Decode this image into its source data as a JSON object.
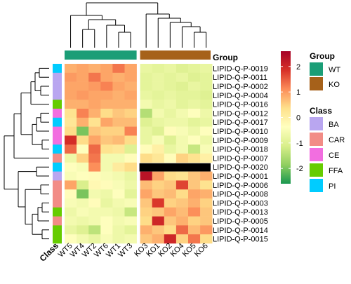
{
  "chart_data": {
    "type": "heatmap",
    "title": "",
    "columns": [
      "WT5",
      "WT4",
      "WT2",
      "WT6",
      "WT1",
      "WT3",
      "KO3",
      "KO1",
      "KO2",
      "KO4",
      "KO5",
      "KO6"
    ],
    "rows": [
      "LIPID-Q-P-0019",
      "LIPID-Q-P-0011",
      "LIPID-Q-P-0002",
      "LIPID-Q-P-0004",
      "LIPID-Q-P-0016",
      "LIPID-Q-P-0012",
      "LIPID-Q-P-0017",
      "LIPID-Q-P-0010",
      "LIPID-Q-P-0009",
      "LIPID-Q-P-0018",
      "LIPID-Q-P-0007",
      "LIPID-Q-P-0020",
      "LIPID-Q-P-0001",
      "LIPID-Q-P-0006",
      "LIPID-Q-P-0008",
      "LIPID-Q-P-0003",
      "LIPID-Q-P-0013",
      "LIPID-Q-P-0005",
      "LIPID-Q-P-0014",
      "LIPID-Q-P-0015"
    ],
    "values": [
      [
        0.8,
        0.9,
        0.8,
        0.9,
        1.3,
        0.9,
        -0.8,
        -0.9,
        -0.8,
        -1.0,
        -0.9,
        -0.8
      ],
      [
        1.0,
        0.9,
        1.3,
        0.9,
        0.8,
        0.9,
        -0.9,
        -0.8,
        -0.9,
        -0.8,
        -1.0,
        -0.9
      ],
      [
        0.9,
        0.9,
        1.0,
        1.2,
        0.9,
        0.8,
        -0.9,
        -0.8,
        -0.9,
        -1.0,
        -0.8,
        -0.9
      ],
      [
        0.9,
        1.0,
        0.9,
        0.9,
        0.8,
        0.9,
        -0.8,
        -0.9,
        -0.8,
        -0.9,
        -0.9,
        -1.0
      ],
      [
        0.8,
        0.8,
        0.9,
        0.8,
        0.8,
        0.8,
        -0.6,
        -0.8,
        -0.7,
        -0.9,
        -0.8,
        -0.9
      ],
      [
        0.3,
        1.2,
        0.8,
        0.4,
        0.6,
        0.5,
        -1.5,
        -0.6,
        -0.8,
        -0.6,
        -0.4,
        -0.7
      ],
      [
        0.2,
        0.8,
        0.3,
        0.9,
        0.7,
        0.7,
        -1.0,
        -0.8,
        -0.7,
        -0.7,
        -0.9,
        -0.8
      ],
      [
        0.4,
        -2.0,
        0.6,
        0.5,
        0.5,
        1.2,
        -0.8,
        -1.0,
        -0.3,
        -0.5,
        -0.7,
        -0.4
      ],
      [
        1.9,
        0.4,
        0.9,
        0.6,
        0.7,
        0.4,
        -0.8,
        -0.5,
        -1.0,
        -0.6,
        -0.4,
        -0.7
      ],
      [
        1.4,
        -0.4,
        1.4,
        0.3,
        0.2,
        -1.0,
        -0.3,
        0.0,
        -0.8,
        -0.6,
        -1.3,
        -0.5
      ],
      [
        -0.7,
        0.5,
        1.3,
        -0.6,
        -0.6,
        -0.3,
        0.4,
        0.2,
        -0.3,
        0.5,
        0.3,
        0.0
      ],
      [
        -0.4,
        -0.5,
        1.1,
        -0.6,
        0.1,
        0.4,
        null,
        null,
        null,
        null,
        null,
        null
      ],
      [
        -0.5,
        -0.4,
        -0.3,
        -0.5,
        -0.6,
        -0.8,
        2.3,
        0.9,
        0.4,
        0.3,
        0.6,
        0.8
      ],
      [
        0.9,
        -1.1,
        -0.2,
        -0.3,
        -0.5,
        -0.7,
        0.7,
        0.5,
        0.6,
        1.7,
        0.6,
        0.3
      ],
      [
        -0.3,
        -2.0,
        -0.6,
        -0.7,
        -0.4,
        -0.9,
        0.9,
        0.6,
        0.7,
        0.4,
        0.9,
        0.8
      ],
      [
        -0.5,
        -0.6,
        -0.3,
        -0.8,
        -0.6,
        -0.5,
        0.6,
        1.8,
        0.5,
        0.6,
        0.8,
        0.5
      ],
      [
        -0.7,
        -0.5,
        -0.6,
        -0.6,
        -0.7,
        -1.3,
        0.5,
        0.6,
        0.9,
        0.7,
        1.1,
        0.6
      ],
      [
        -0.6,
        -0.7,
        -0.6,
        -0.4,
        -0.6,
        -0.5,
        0.4,
        2.0,
        0.6,
        0.8,
        0.5,
        0.6
      ],
      [
        -0.8,
        -1.0,
        -1.4,
        -0.4,
        -0.7,
        -0.9,
        0.8,
        0.6,
        0.4,
        1.4,
        0.7,
        1.0
      ],
      [
        -0.4,
        -0.6,
        -0.8,
        -0.5,
        -0.7,
        -0.6,
        0.6,
        0.8,
        2.0,
        0.5,
        1.3,
        0.4
      ]
    ],
    "missing_color": "#000000",
    "column_group": [
      "WT",
      "WT",
      "WT",
      "WT",
      "WT",
      "WT",
      "KO",
      "KO",
      "KO",
      "KO",
      "KO",
      "KO"
    ],
    "row_class": [
      "PI",
      "BA",
      "BA",
      "BA",
      "FFA",
      "CE",
      "PI",
      "CE",
      "CE",
      "PI",
      "CAR",
      "PI",
      "BA",
      "CAR",
      "CAR",
      "CAR",
      "FFA",
      "CAR",
      "FFA",
      "FFA"
    ],
    "group_annotation_title": "Group",
    "class_annotation_label": "Class",
    "colorbar": {
      "ticks": [
        2,
        1,
        0,
        -1,
        -2
      ],
      "range": [
        -2.6,
        2.6
      ]
    },
    "scale_colors": [
      "#1a9850",
      "#91cf60",
      "#d9ef8b",
      "#ffffbf",
      "#fee08b",
      "#fc8d59",
      "#d73027",
      "#a50026"
    ],
    "legend_group": {
      "title": "Group",
      "items": [
        {
          "label": "WT",
          "color": "#1b9e77"
        },
        {
          "label": "KO",
          "color": "#a6611a"
        }
      ]
    },
    "legend_class": {
      "title": "Class",
      "items": [
        {
          "label": "BA",
          "color": "#b9a6f0"
        },
        {
          "label": "CAR",
          "color": "#f28c86"
        },
        {
          "label": "CE",
          "color": "#f26ee0"
        },
        {
          "label": "FFA",
          "color": "#66cc00"
        },
        {
          "label": "PI",
          "color": "#00ccff"
        }
      ]
    },
    "grid": false
  }
}
